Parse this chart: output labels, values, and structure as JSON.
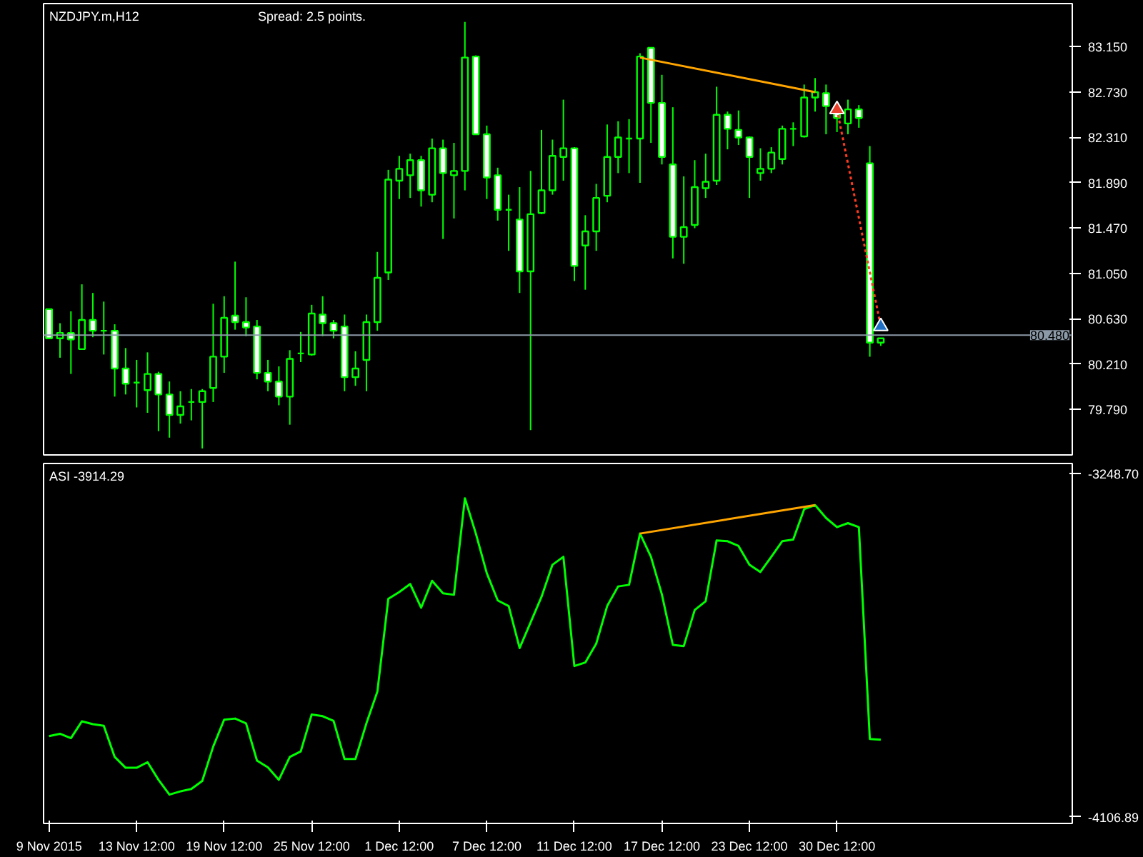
{
  "chart_data": [
    {
      "type": "candlestick",
      "title": "NZDJPY.m,H12",
      "annotations": [
        "Spread: 2.5 points."
      ],
      "color": "#00ff00",
      "categories": [
        null,
        null,
        null,
        null,
        null,
        null,
        null,
        null,
        null,
        null,
        null,
        null,
        null,
        null,
        null,
        null,
        null,
        null,
        null,
        null,
        null,
        null,
        null,
        null,
        null,
        null,
        null,
        null,
        null,
        null,
        null,
        null,
        null,
        null,
        null,
        null,
        null,
        null,
        null,
        null,
        null,
        null,
        null,
        null,
        null,
        null,
        null,
        null,
        null,
        null,
        null,
        null,
        null,
        null,
        null,
        null,
        null,
        null,
        null,
        null,
        null,
        null,
        null,
        null,
        null,
        null,
        null,
        null,
        null,
        null,
        null,
        null,
        null,
        null,
        null,
        null,
        null,
        null,
        null,
        null,
        null,
        null,
        null,
        null,
        null,
        null,
        null,
        null,
        null,
        null,
        null,
        null,
        null,
        null
      ],
      "ohlc": [
        [
          80.72,
          80.72,
          80.45,
          80.45
        ],
        [
          80.45,
          80.59,
          80.27,
          80.5
        ],
        [
          80.5,
          80.7,
          80.12,
          80.44
        ],
        [
          80.35,
          80.95,
          80.35,
          80.62
        ],
        [
          80.62,
          80.87,
          80.46,
          80.52
        ],
        [
          80.52,
          80.79,
          80.3,
          80.52
        ],
        [
          80.52,
          80.58,
          79.91,
          80.17
        ],
        [
          80.17,
          80.36,
          79.93,
          80.03
        ],
        [
          80.04,
          80.25,
          79.81,
          80.04
        ],
        [
          79.97,
          80.32,
          79.76,
          80.12
        ],
        [
          80.12,
          80.14,
          79.59,
          79.93
        ],
        [
          79.93,
          80.05,
          79.53,
          79.74
        ],
        [
          79.74,
          79.96,
          79.66,
          79.82
        ],
        [
          79.86,
          79.98,
          79.69,
          79.86
        ],
        [
          79.86,
          79.98,
          79.43,
          79.96
        ],
        [
          79.99,
          80.77,
          79.86,
          80.28
        ],
        [
          80.28,
          80.84,
          80.13,
          80.64
        ],
        [
          80.66,
          81.16,
          80.53,
          80.6
        ],
        [
          80.6,
          80.83,
          80.47,
          80.55
        ],
        [
          80.56,
          80.62,
          80.07,
          80.13
        ],
        [
          80.13,
          80.25,
          79.96,
          80.05
        ],
        [
          80.05,
          80.19,
          79.83,
          79.91
        ],
        [
          79.91,
          80.34,
          79.65,
          80.26
        ],
        [
          80.31,
          80.51,
          80.23,
          80.31
        ],
        [
          80.3,
          80.76,
          80.29,
          80.68
        ],
        [
          80.67,
          80.84,
          80.47,
          80.59
        ],
        [
          80.59,
          80.62,
          80.45,
          80.52
        ],
        [
          80.56,
          80.67,
          79.96,
          80.09
        ],
        [
          80.09,
          80.33,
          80.01,
          80.17
        ],
        [
          80.25,
          80.67,
          79.96,
          80.6
        ],
        [
          80.6,
          81.25,
          80.52,
          81.01
        ],
        [
          81.06,
          82.01,
          80.99,
          81.92
        ],
        [
          81.91,
          82.14,
          81.74,
          82.02
        ],
        [
          81.96,
          82.16,
          81.75,
          82.1
        ],
        [
          82.1,
          82.14,
          81.67,
          81.82
        ],
        [
          81.78,
          82.3,
          81.71,
          82.21
        ],
        [
          82.21,
          82.29,
          81.37,
          81.98
        ],
        [
          81.96,
          82.26,
          81.56,
          82.0
        ],
        [
          82.0,
          83.38,
          81.82,
          83.05
        ],
        [
          83.06,
          83.07,
          82.34,
          82.34
        ],
        [
          82.34,
          82.42,
          81.74,
          81.94
        ],
        [
          81.96,
          82.03,
          81.54,
          81.64
        ],
        [
          81.64,
          81.78,
          81.26,
          81.64
        ],
        [
          81.55,
          81.85,
          80.87,
          81.07
        ],
        [
          81.07,
          82.0,
          79.6,
          81.6
        ],
        [
          81.61,
          82.38,
          81.6,
          81.82
        ],
        [
          81.82,
          82.29,
          81.78,
          82.14
        ],
        [
          82.13,
          82.66,
          81.91,
          82.21
        ],
        [
          82.21,
          82.22,
          80.98,
          81.12
        ],
        [
          81.31,
          81.59,
          80.9,
          81.44
        ],
        [
          81.44,
          81.88,
          81.26,
          81.75
        ],
        [
          81.77,
          82.43,
          81.71,
          82.13
        ],
        [
          82.13,
          82.46,
          81.98,
          82.31
        ],
        [
          82.3,
          82.48,
          81.98,
          82.3
        ],
        [
          82.3,
          83.09,
          81.89,
          83.06
        ],
        [
          83.14,
          83.14,
          82.26,
          82.63
        ],
        [
          82.63,
          82.89,
          82.06,
          82.13
        ],
        [
          82.06,
          82.59,
          81.19,
          81.39
        ],
        [
          81.39,
          81.95,
          81.14,
          81.48
        ],
        [
          81.5,
          82.1,
          81.47,
          81.85
        ],
        [
          81.84,
          82.16,
          81.75,
          81.9
        ],
        [
          81.91,
          82.78,
          81.87,
          82.52
        ],
        [
          82.52,
          82.55,
          82.2,
          82.39
        ],
        [
          82.38,
          82.56,
          82.24,
          82.31
        ],
        [
          82.31,
          82.32,
          81.75,
          82.13
        ],
        [
          81.98,
          82.21,
          81.91,
          82.02
        ],
        [
          82.02,
          82.22,
          81.98,
          82.17
        ],
        [
          82.11,
          82.42,
          82.06,
          82.39
        ],
        [
          82.39,
          82.45,
          82.23,
          82.39
        ],
        [
          82.32,
          82.8,
          82.31,
          82.68
        ],
        [
          82.68,
          82.86,
          82.55,
          82.73
        ],
        [
          82.72,
          82.8,
          82.34,
          82.6
        ],
        [
          82.6,
          82.6,
          82.36,
          82.49
        ],
        [
          82.44,
          82.66,
          82.34,
          82.57
        ],
        [
          82.57,
          82.61,
          82.4,
          82.49
        ],
        [
          82.07,
          82.23,
          80.28,
          80.41
        ],
        [
          80.41,
          80.45,
          80.38,
          80.45
        ],
        null,
        null,
        null,
        null,
        null,
        null,
        null,
        null,
        null,
        null,
        null,
        null,
        null,
        null,
        null,
        null,
        null
      ],
      "series": [
        {
          "type": "line",
          "color": "#ffa500",
          "values": [
            null,
            null,
            null,
            null,
            null,
            null,
            null,
            null,
            null,
            null,
            null,
            null,
            null,
            null,
            null,
            null,
            null,
            null,
            null,
            null,
            null,
            null,
            null,
            null,
            null,
            null,
            null,
            null,
            null,
            null,
            null,
            null,
            null,
            null,
            null,
            null,
            null,
            null,
            null,
            null,
            null,
            null,
            null,
            null,
            null,
            null,
            null,
            null,
            null,
            null,
            null,
            null,
            null,
            null,
            83.05,
            null,
            null,
            null,
            null,
            null,
            null,
            null,
            null,
            null,
            null,
            null,
            null,
            null,
            null,
            null,
            82.73,
            null,
            null,
            null,
            null,
            null,
            null,
            null,
            null,
            null,
            null,
            null,
            null,
            null,
            null,
            null,
            null,
            null,
            null,
            null,
            null,
            null,
            null,
            null
          ]
        },
        {
          "type": "line",
          "color": "#ff3b1f",
          "line_style": "dotted",
          "values": [
            null,
            null,
            null,
            null,
            null,
            null,
            null,
            null,
            null,
            null,
            null,
            null,
            null,
            null,
            null,
            null,
            null,
            null,
            null,
            null,
            null,
            null,
            null,
            null,
            null,
            null,
            null,
            null,
            null,
            null,
            null,
            null,
            null,
            null,
            null,
            null,
            null,
            null,
            null,
            null,
            null,
            null,
            null,
            null,
            null,
            null,
            null,
            null,
            null,
            null,
            null,
            null,
            null,
            null,
            null,
            null,
            null,
            null,
            null,
            null,
            null,
            null,
            null,
            null,
            null,
            null,
            null,
            null,
            null,
            null,
            null,
            null,
            82.57,
            null,
            null,
            null,
            80.56,
            null,
            null,
            null,
            null,
            null,
            null,
            null,
            null,
            null,
            null,
            null,
            null,
            null,
            null,
            null,
            null,
            null
          ]
        },
        {
          "type": "scatter",
          "marker": "triangle",
          "color": "#e8402a",
          "values": [
            null,
            null,
            null,
            null,
            null,
            null,
            null,
            null,
            null,
            null,
            null,
            null,
            null,
            null,
            null,
            null,
            null,
            null,
            null,
            null,
            null,
            null,
            null,
            null,
            null,
            null,
            null,
            null,
            null,
            null,
            null,
            null,
            null,
            null,
            null,
            null,
            null,
            null,
            null,
            null,
            null,
            null,
            null,
            null,
            null,
            null,
            null,
            null,
            null,
            null,
            null,
            null,
            null,
            null,
            null,
            null,
            null,
            null,
            null,
            null,
            null,
            null,
            null,
            null,
            null,
            null,
            null,
            null,
            null,
            null,
            null,
            null,
            82.57,
            null,
            null,
            null,
            null,
            null,
            null,
            null,
            null,
            null,
            null,
            null,
            null,
            null,
            null,
            null,
            null,
            null,
            null,
            null,
            null,
            null
          ]
        },
        {
          "type": "scatter",
          "marker": "triangle",
          "color": "#1f6fc4",
          "values": [
            null,
            null,
            null,
            null,
            null,
            null,
            null,
            null,
            null,
            null,
            null,
            null,
            null,
            null,
            null,
            null,
            null,
            null,
            null,
            null,
            null,
            null,
            null,
            null,
            null,
            null,
            null,
            null,
            null,
            null,
            null,
            null,
            null,
            null,
            null,
            null,
            null,
            null,
            null,
            null,
            null,
            null,
            null,
            null,
            null,
            null,
            null,
            null,
            null,
            null,
            null,
            null,
            null,
            null,
            null,
            null,
            null,
            null,
            null,
            null,
            null,
            null,
            null,
            null,
            null,
            null,
            null,
            null,
            null,
            null,
            null,
            null,
            null,
            null,
            null,
            null,
            80.56,
            null,
            null,
            null,
            null,
            null,
            null,
            null,
            null,
            null,
            null,
            null,
            null,
            null,
            null,
            null,
            null,
            null
          ]
        }
      ],
      "ref_lines": [
        {
          "axis": "y",
          "value": 80.48,
          "label": "80.480",
          "color": "#8c9aa8"
        }
      ],
      "ylim": [
        79.37,
        83.55
      ],
      "yticks": [
        {
          "value": 83.15,
          "label": "83.150"
        },
        {
          "value": 82.73,
          "label": "82.730"
        },
        {
          "value": 82.31,
          "label": "82.310"
        },
        {
          "value": 81.89,
          "label": "81.890"
        },
        {
          "value": 81.47,
          "label": "81.470"
        },
        {
          "value": 81.05,
          "label": "81.050"
        },
        {
          "value": 80.63,
          "label": "80.630"
        },
        {
          "value": 80.21,
          "label": "80.210"
        },
        {
          "value": 79.79,
          "label": "79.790"
        }
      ],
      "tick_labels": "y"
    },
    {
      "type": "line",
      "title": "ASI -3914.29",
      "categories": [
        "9 Nov 2015",
        null,
        null,
        null,
        null,
        null,
        null,
        null,
        "13 Nov 12:00",
        null,
        null,
        null,
        null,
        null,
        null,
        null,
        "19 Nov 12:00",
        null,
        null,
        null,
        null,
        null,
        null,
        null,
        "25 Nov 12:00",
        null,
        null,
        null,
        null,
        null,
        null,
        null,
        "1 Dec 12:00",
        null,
        null,
        null,
        null,
        null,
        null,
        null,
        "7 Dec 12:00",
        null,
        null,
        null,
        null,
        null,
        null,
        null,
        "11 Dec 12:00",
        null,
        null,
        null,
        null,
        null,
        null,
        null,
        "17 Dec 12:00",
        null,
        null,
        null,
        null,
        null,
        null,
        null,
        "23 Dec 12:00",
        null,
        null,
        null,
        null,
        null,
        null,
        null,
        "30 Dec 12:00",
        null,
        null,
        null,
        null,
        null,
        null,
        null,
        null,
        null,
        null,
        null,
        null,
        null,
        null,
        null,
        null,
        null,
        null,
        null,
        null,
        null
      ],
      "series": [
        {
          "color": "#00ff00",
          "values": [
            -3905,
            -3899,
            -3910,
            -3868,
            -3875,
            -3879,
            -3957,
            -3984,
            -3984,
            -3970,
            -4014,
            -4051,
            -4043,
            -4037,
            -4017,
            -3931,
            -3864,
            -3861,
            -3873,
            -3966,
            -3983,
            -4014,
            -3957,
            -3943,
            -3851,
            -3855,
            -3867,
            -3962,
            -3962,
            -3873,
            -3794,
            -3562,
            -3545,
            -3525,
            -3584,
            -3517,
            -3548,
            -3552,
            -3311,
            -3399,
            -3498,
            -3566,
            -3580,
            -3685,
            -3621,
            -3557,
            -3477,
            -3457,
            -3730,
            -3721,
            -3674,
            -3580,
            -3531,
            -3527,
            -3399,
            -3457,
            -3551,
            -3677,
            -3680,
            -3590,
            -3568,
            -3416,
            -3418,
            -3430,
            -3477,
            -3495,
            -3457,
            -3418,
            -3414,
            -3338,
            -3328,
            -3360,
            -3383,
            -3373,
            -3383,
            -3912,
            -3914,
            null,
            null,
            null,
            null,
            null,
            null,
            null,
            null,
            null,
            null,
            null,
            null,
            null,
            null,
            null,
            null,
            null
          ]
        },
        {
          "color": "#ffa500",
          "values": [
            null,
            null,
            null,
            null,
            null,
            null,
            null,
            null,
            null,
            null,
            null,
            null,
            null,
            null,
            null,
            null,
            null,
            null,
            null,
            null,
            null,
            null,
            null,
            null,
            null,
            null,
            null,
            null,
            null,
            null,
            null,
            null,
            null,
            null,
            null,
            null,
            null,
            null,
            null,
            null,
            null,
            null,
            null,
            null,
            null,
            null,
            null,
            null,
            null,
            null,
            null,
            null,
            null,
            null,
            -3399,
            null,
            null,
            null,
            null,
            null,
            null,
            null,
            null,
            null,
            null,
            null,
            null,
            null,
            null,
            null,
            -3328,
            null,
            null,
            null,
            null,
            null,
            null,
            null,
            null,
            null,
            null,
            null,
            null,
            null,
            null,
            null,
            null,
            null,
            null,
            null,
            null,
            null,
            null,
            null
          ]
        }
      ],
      "ylim": [
        -4123,
        -3224
      ],
      "yticks": [
        {
          "value": -3248.7,
          "label": "-3248.70"
        },
        {
          "value": -4106.89,
          "label": "-4106.89"
        }
      ]
    }
  ]
}
